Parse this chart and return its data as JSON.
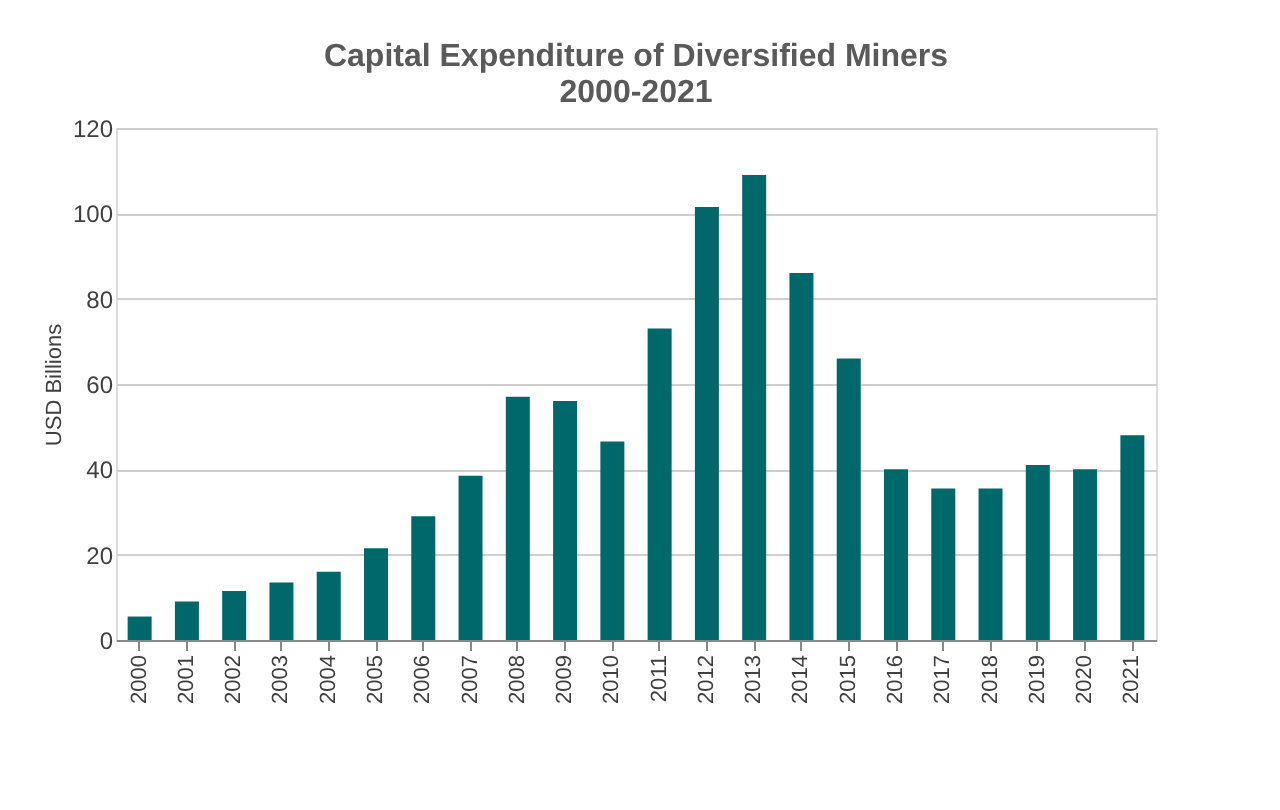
{
  "chart_data": {
    "type": "bar",
    "title": [
      "Capital Expenditure of Diversified Miners",
      "2000-2021"
    ],
    "ylabel": "USD Billions",
    "categories": [
      "2000",
      "2001",
      "2002",
      "2003",
      "2004",
      "2005",
      "2006",
      "2007",
      "2008",
      "2009",
      "2010",
      "2011",
      "2012",
      "2013",
      "2014",
      "2015",
      "2016",
      "2017",
      "2018",
      "2019",
      "2020",
      "2021"
    ],
    "values": [
      5.5,
      9,
      11.5,
      13.5,
      16,
      21.5,
      29,
      38.5,
      57,
      56,
      46.5,
      73,
      101.5,
      109,
      86,
      66,
      40,
      35.5,
      35.5,
      41,
      40,
      48
    ],
    "color": "#00676b",
    "ylim": [
      0,
      120
    ],
    "yticks": [
      0,
      20,
      40,
      60,
      80,
      100,
      120
    ],
    "grid": "y"
  }
}
